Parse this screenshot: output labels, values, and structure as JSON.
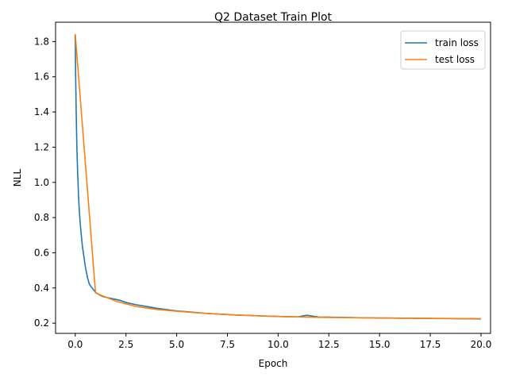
{
  "chart_data": {
    "type": "line",
    "title": "Q2 Dataset Train Plot",
    "xlabel": "Epoch",
    "ylabel": "NLL",
    "xlim": [
      -0.97,
      20.47
    ],
    "ylim": [
      0.142,
      1.91
    ],
    "xticks": [
      0.0,
      2.5,
      5.0,
      7.5,
      10.0,
      12.5,
      15.0,
      17.5,
      20.0
    ],
    "xtick_labels": [
      "0.0",
      "2.5",
      "5.0",
      "7.5",
      "10.0",
      "12.5",
      "15.0",
      "17.5",
      "20.0"
    ],
    "yticks": [
      0.2,
      0.4,
      0.6,
      0.8,
      1.0,
      1.2,
      1.4,
      1.6,
      1.8
    ],
    "ytick_labels": [
      "0.2",
      "0.4",
      "0.6",
      "0.8",
      "1.0",
      "1.2",
      "1.4",
      "1.6",
      "1.8"
    ],
    "grid": false,
    "legend_position": "top-right",
    "series": [
      {
        "name": "train loss",
        "color": "#1f77b4",
        "x": [
          0.0,
          0.02,
          0.05,
          0.08,
          0.12,
          0.16,
          0.2,
          0.25,
          0.3,
          0.35,
          0.4,
          0.45,
          0.5,
          0.55,
          0.6,
          0.65,
          0.7,
          0.8,
          0.9,
          1.0,
          1.2,
          1.4,
          1.6,
          1.8,
          2.0,
          2.2,
          2.4,
          2.6,
          2.8,
          3.0,
          3.5,
          4.0,
          4.5,
          5.0,
          5.5,
          6.0,
          6.5,
          7.0,
          7.5,
          8.0,
          8.5,
          9.0,
          9.5,
          10.0,
          10.5,
          11.0,
          11.4,
          12.0,
          12.5,
          13.0,
          13.5,
          14.0,
          14.5,
          15.0,
          15.5,
          16.0,
          16.5,
          17.0,
          17.5,
          18.0,
          18.5,
          19.0,
          19.5,
          20.0
        ],
        "y": [
          1.84,
          1.6,
          1.38,
          1.2,
          1.05,
          0.93,
          0.84,
          0.76,
          0.7,
          0.64,
          0.6,
          0.56,
          0.52,
          0.49,
          0.46,
          0.44,
          0.42,
          0.405,
          0.39,
          0.375,
          0.36,
          0.35,
          0.345,
          0.34,
          0.335,
          0.33,
          0.322,
          0.315,
          0.31,
          0.305,
          0.295,
          0.285,
          0.277,
          0.27,
          0.265,
          0.26,
          0.255,
          0.252,
          0.249,
          0.246,
          0.244,
          0.242,
          0.24,
          0.238,
          0.237,
          0.236,
          0.245,
          0.235,
          0.234,
          0.233,
          0.232,
          0.231,
          0.23,
          0.229,
          0.229,
          0.228,
          0.228,
          0.227,
          0.227,
          0.226,
          0.226,
          0.225,
          0.225,
          0.224
        ]
      },
      {
        "name": "test loss",
        "color": "#ff7f0e",
        "x": [
          0,
          1,
          2,
          3,
          4,
          5,
          6,
          7,
          8,
          9,
          10,
          11,
          12,
          13,
          14,
          15,
          16,
          17,
          18,
          19,
          20
        ],
        "y": [
          1.843,
          0.372,
          0.325,
          0.295,
          0.278,
          0.268,
          0.259,
          0.252,
          0.246,
          0.242,
          0.238,
          0.235,
          0.233,
          0.232,
          0.231,
          0.23,
          0.229,
          0.228,
          0.227,
          0.226,
          0.226
        ]
      }
    ]
  }
}
